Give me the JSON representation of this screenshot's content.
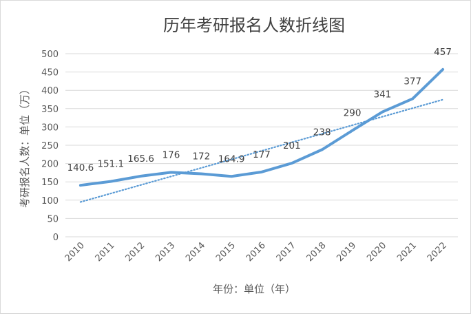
{
  "chart_data": {
    "type": "line",
    "title": "历年考研报名人数折线图",
    "xlabel": "年份：单位（年）",
    "ylabel": "考研报名人数：单位（万）",
    "categories": [
      "2010",
      "2011",
      "2012",
      "2013",
      "2014",
      "2015",
      "2016",
      "2017",
      "2018",
      "2019",
      "2020",
      "2021",
      "2022"
    ],
    "series": [
      {
        "values": [
          140.6,
          151.1,
          165.6,
          176,
          172,
          164.9,
          177,
          201,
          238,
          290,
          341,
          377,
          457
        ]
      }
    ],
    "data_labels": [
      "140.6",
      "151.1",
      "165.6",
      "176",
      "172",
      "164.9",
      "177",
      "201",
      "238",
      "290",
      "341",
      "377",
      "457"
    ],
    "trendline": {
      "type": "linear",
      "style": "dotted"
    },
    "ylim": [
      0,
      500
    ],
    "yticks": [
      "0",
      "50",
      "100",
      "150",
      "200",
      "250",
      "300",
      "350",
      "400",
      "450",
      "500"
    ],
    "grid": true,
    "legend": "none",
    "colors": {
      "series": "#5b9bd5",
      "grid": "#d9d9d9",
      "text": "#595959"
    }
  }
}
